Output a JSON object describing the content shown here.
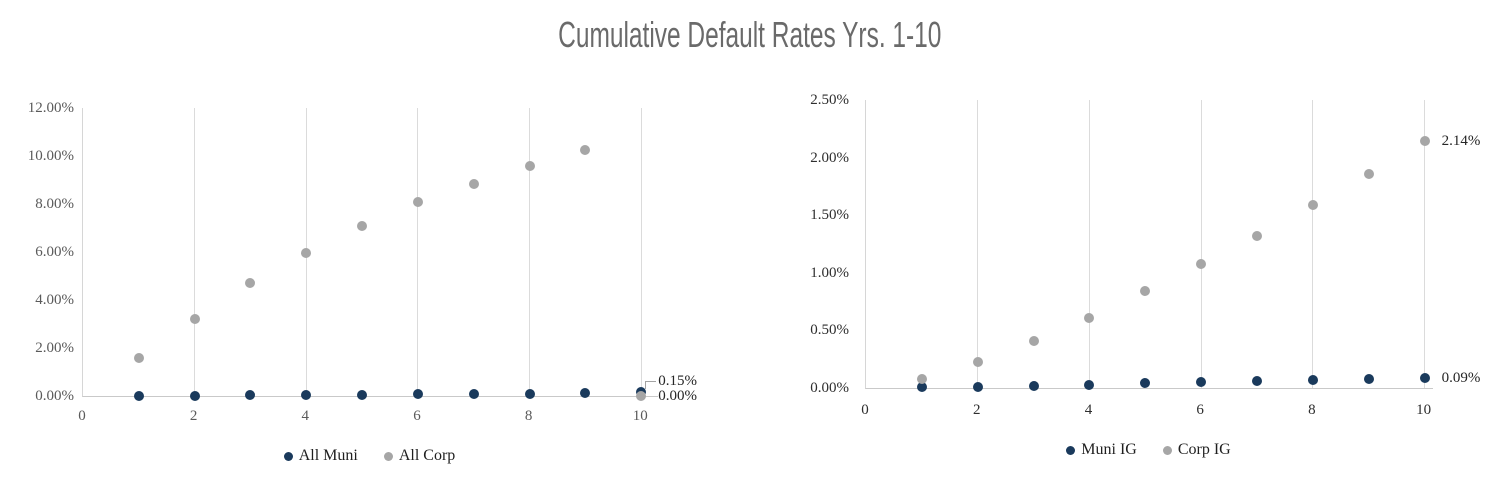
{
  "title": "Cumulative Default Rates Yrs. 1-10",
  "colors": {
    "muni_blue": "#1a3a5c",
    "corp_gray": "#a6a6a6",
    "gridline": "#dbdbdb",
    "axis_line": "#c9c9c9",
    "title_gray": "#6a6a6a"
  },
  "chart_data": [
    {
      "type": "scatter",
      "side": "left",
      "x": [
        1,
        2,
        3,
        4,
        5,
        6,
        7,
        8,
        9,
        10
      ],
      "xticks": [
        0,
        2,
        4,
        6,
        8,
        10
      ],
      "xlim": [
        0,
        10.3
      ],
      "ylim": [
        0,
        12
      ],
      "yticks": [
        0,
        2,
        4,
        6,
        8,
        10,
        12
      ],
      "ytick_labels": [
        "0.00%",
        "2.00%",
        "4.00%",
        "6.00%",
        "8.00%",
        "10.00%",
        "12.00%"
      ],
      "tick_color": "#5a5a5a",
      "grid": "vertical-only",
      "legend_position": "bottom",
      "series": [
        {
          "name": "All Muni",
          "color": "#1a3a5c",
          "values": [
            0.01,
            0.02,
            0.03,
            0.05,
            0.06,
            0.07,
            0.09,
            0.1,
            0.12,
            0.15
          ]
        },
        {
          "name": "All Corp",
          "color": "#a6a6a6",
          "values": [
            1.6,
            3.2,
            4.7,
            5.95,
            7.1,
            8.1,
            8.85,
            9.6,
            10.25,
            0.0
          ]
        }
      ],
      "end_labels": [
        {
          "text": "0.15%",
          "series": 0,
          "dy": -11,
          "leader": true
        },
        {
          "text": "0.00%",
          "series": 1,
          "dy": 0,
          "leader": false
        }
      ]
    },
    {
      "type": "scatter",
      "side": "right",
      "x": [
        1,
        2,
        3,
        4,
        5,
        6,
        7,
        8,
        9,
        10
      ],
      "xticks": [
        0,
        2,
        4,
        6,
        8,
        10
      ],
      "xlim": [
        0,
        10.15
      ],
      "ylim": [
        0,
        2.5
      ],
      "yticks": [
        0,
        0.5,
        1,
        1.5,
        2,
        2.5
      ],
      "ytick_labels": [
        "0.00%",
        "0.50%",
        "1.00%",
        "1.50%",
        "2.00%",
        "2.50%"
      ],
      "tick_color": "#2e2e2e",
      "grid": "vertical-only",
      "legend_position": "bottom",
      "series": [
        {
          "name": "Muni IG",
          "color": "#1a3a5c",
          "values": [
            0.01,
            0.01,
            0.02,
            0.03,
            0.04,
            0.05,
            0.06,
            0.07,
            0.08,
            0.09
          ]
        },
        {
          "name": "Corp IG",
          "color": "#a6a6a6",
          "values": [
            0.08,
            0.23,
            0.41,
            0.61,
            0.84,
            1.08,
            1.32,
            1.59,
            1.86,
            2.14
          ]
        }
      ],
      "end_labels": [
        {
          "text": "0.09%",
          "series": 0,
          "dy": 0,
          "leader": false
        },
        {
          "text": "2.14%",
          "series": 1,
          "dy": 0,
          "leader": false
        }
      ]
    }
  ]
}
